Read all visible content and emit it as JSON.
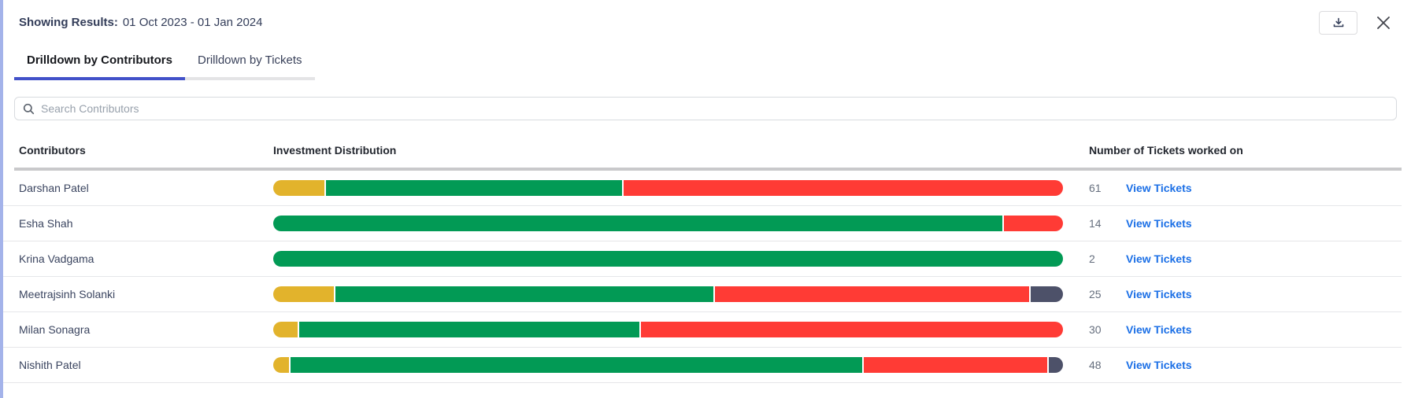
{
  "header": {
    "results_label": "Showing Results:",
    "date_range": "01 Oct 2023 - 01 Jan 2024"
  },
  "tabs": [
    {
      "label": "Drilldown by Contributors",
      "active": true
    },
    {
      "label": "Drilldown by Tickets",
      "active": false
    }
  ],
  "search": {
    "placeholder": "Search Contributors",
    "value": ""
  },
  "table": {
    "columns": [
      "Contributors",
      "Investment Distribution",
      "Number of Tickets worked on"
    ],
    "rows": [
      {
        "contributor": "Darshan Patel",
        "tickets": "61",
        "link_label": "View Tickets",
        "segments": [
          {
            "color": "yellow",
            "pct": 6.5
          },
          {
            "color": "green",
            "pct": 37.5
          },
          {
            "color": "red",
            "pct": 56.0
          }
        ]
      },
      {
        "contributor": "Esha Shah",
        "tickets": "14",
        "link_label": "View Tickets",
        "segments": [
          {
            "color": "green",
            "pct": 92.3
          },
          {
            "color": "red",
            "pct": 7.7
          }
        ]
      },
      {
        "contributor": "Krina Vadgama",
        "tickets": "2",
        "link_label": "View Tickets",
        "segments": [
          {
            "color": "green",
            "pct": 100
          }
        ]
      },
      {
        "contributor": "Meetrajsinh Solanki",
        "tickets": "25",
        "link_label": "View Tickets",
        "segments": [
          {
            "color": "yellow",
            "pct": 7.7
          },
          {
            "color": "green",
            "pct": 47.8
          },
          {
            "color": "red",
            "pct": 39.8
          },
          {
            "color": "slate",
            "pct": 4.7
          }
        ]
      },
      {
        "contributor": "Milan Sonagra",
        "tickets": "30",
        "link_label": "View Tickets",
        "segments": [
          {
            "color": "yellow",
            "pct": 3.1
          },
          {
            "color": "green",
            "pct": 43.1
          },
          {
            "color": "red",
            "pct": 53.8
          }
        ]
      },
      {
        "contributor": "Nishith Patel",
        "tickets": "48",
        "link_label": "View Tickets",
        "segments": [
          {
            "color": "yellow",
            "pct": 2.0
          },
          {
            "color": "green",
            "pct": 72.4
          },
          {
            "color": "red",
            "pct": 23.2
          },
          {
            "color": "slate",
            "pct": 2.4
          }
        ]
      }
    ]
  },
  "colors": {
    "yellow": "#e2b32c",
    "green": "#029a55",
    "red": "#ff3b35",
    "slate": "#4d5169",
    "link_blue": "#1b6fe6",
    "tab_underline": "#4251c9"
  },
  "icons": {
    "download": "download-tray-icon",
    "close": "close-x-icon",
    "search": "search-icon"
  }
}
